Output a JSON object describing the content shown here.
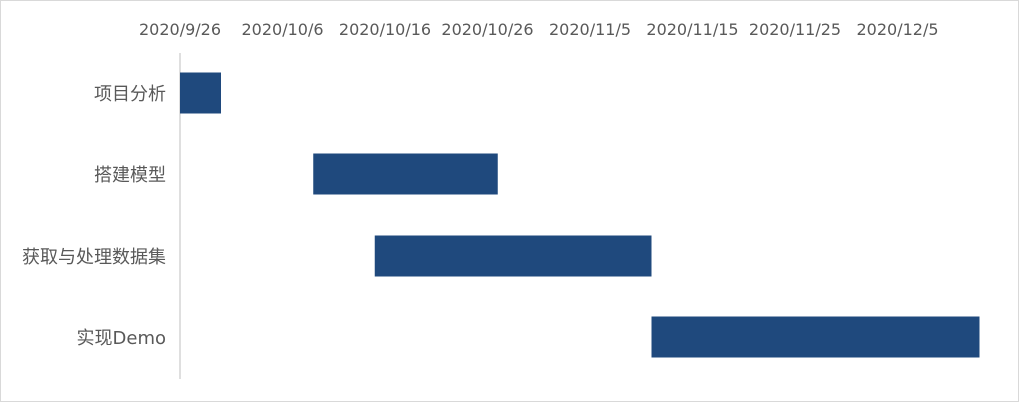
{
  "chart_data": {
    "type": "bar",
    "orientation": "horizontal",
    "subtype": "gantt",
    "x_axis": {
      "type": "date",
      "position": "top",
      "ticks": [
        "2020/9/26",
        "2020/10/6",
        "2020/10/16",
        "2020/10/26",
        "2020/11/5",
        "2020/11/15",
        "2020/11/25",
        "2020/12/5"
      ],
      "range": [
        "2020/9/26",
        "2020/12/14"
      ]
    },
    "grid": false,
    "legend": "none",
    "bar_color": "#1f497d",
    "categories": [
      "项目分析",
      "搭建模型",
      "获取与处理数据集",
      "实现Demo"
    ],
    "tasks": [
      {
        "name": "项目分析",
        "start": "2020/9/26",
        "end": "2020/9/30"
      },
      {
        "name": "搭建模型",
        "start": "2020/10/9",
        "end": "2020/10/27"
      },
      {
        "name": "获取与处理数据集",
        "start": "2020/10/15",
        "end": "2020/11/11"
      },
      {
        "name": "实现Demo",
        "start": "2020/11/11",
        "end": "2020/12/13"
      }
    ]
  }
}
